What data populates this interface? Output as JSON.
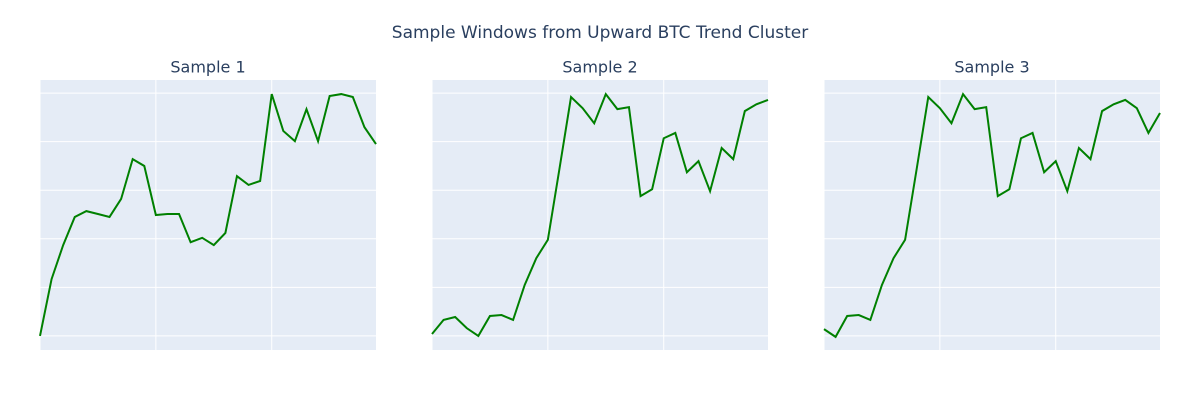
{
  "title": "Sample Windows from Upward BTC Trend Cluster",
  "chart_data": [
    {
      "type": "line",
      "title": "Sample 1",
      "color": "green",
      "grid": true,
      "x": [
        0,
        1,
        2,
        3,
        4,
        5,
        6,
        7,
        8,
        9,
        10,
        11,
        12,
        13,
        14,
        15,
        16,
        17,
        18,
        19,
        20,
        21,
        22,
        23,
        24,
        25,
        26,
        27,
        28,
        29
      ],
      "values": [
        0,
        1.17,
        1.87,
        2.45,
        2.57,
        2.51,
        2.45,
        2.82,
        3.64,
        3.5,
        2.49,
        2.51,
        2.51,
        1.93,
        2.02,
        1.87,
        2.12,
        3.29,
        3.11,
        3.19,
        4.98,
        4.22,
        4.01,
        4.67,
        4.01,
        4.94,
        4.98,
        4.92,
        4.3,
        3.95
      ],
      "xlim": [
        0,
        29
      ],
      "xticks": [
        0,
        10,
        20
      ],
      "ylim": [
        -0.29,
        5.27
      ],
      "yticks": [
        0,
        1,
        2,
        3,
        4,
        5
      ]
    },
    {
      "type": "line",
      "title": "Sample 2",
      "color": "green",
      "grid": true,
      "x": [
        0,
        1,
        2,
        3,
        4,
        5,
        6,
        7,
        8,
        9,
        10,
        11,
        12,
        13,
        14,
        15,
        16,
        17,
        18,
        19,
        20,
        21,
        22,
        23,
        24,
        25,
        26,
        27,
        28,
        29
      ],
      "values": [
        0.04,
        0.33,
        0.39,
        0.16,
        0,
        0.41,
        0.43,
        0.33,
        1.05,
        1.6,
        1.98,
        3.44,
        4.92,
        4.69,
        4.38,
        4.98,
        4.67,
        4.71,
        2.88,
        3.02,
        4.07,
        4.18,
        3.37,
        3.6,
        2.98,
        3.87,
        3.64,
        4.63,
        4.77,
        4.86
      ],
      "xlim": [
        0,
        29
      ],
      "xticks": [
        0,
        10,
        20
      ],
      "ylim": [
        -0.29,
        5.27
      ],
      "yticks": [
        0,
        1,
        2,
        3,
        4,
        5
      ]
    },
    {
      "type": "line",
      "title": "Sample 3",
      "color": "green",
      "grid": true,
      "x": [
        0,
        1,
        2,
        3,
        4,
        5,
        6,
        7,
        8,
        9,
        10,
        11,
        12,
        13,
        14,
        15,
        16,
        17,
        18,
        19,
        20,
        21,
        22,
        23,
        24,
        25,
        26,
        27,
        28,
        29
      ],
      "values": [
        0.14,
        -0.02,
        0.41,
        0.43,
        0.33,
        1.05,
        1.6,
        1.98,
        3.44,
        4.92,
        4.69,
        4.38,
        4.98,
        4.67,
        4.71,
        2.88,
        3.02,
        4.07,
        4.18,
        3.37,
        3.6,
        2.98,
        3.87,
        3.64,
        4.63,
        4.77,
        4.86,
        4.69,
        4.18,
        4.59
      ],
      "xlim": [
        0,
        29
      ],
      "xticks": [
        0,
        10,
        20
      ],
      "ylim": [
        -0.29,
        5.27
      ],
      "yticks": [
        0,
        1,
        2,
        3,
        4,
        5
      ]
    }
  ]
}
